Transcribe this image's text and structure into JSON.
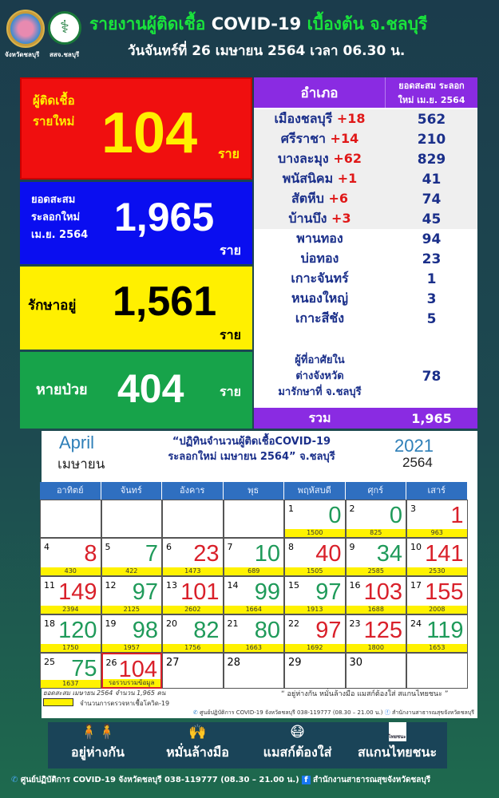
{
  "header": {
    "logo1_caption": "จังหวัดชลบุรี",
    "logo2_caption": "สสจ.ชลบุรี",
    "title_green1": "รายงานผู้ติดเชื้อ",
    "title_white": "COVID-19",
    "title_green2": "เบื้องต้น จ.ชลบุรี",
    "subtitle": "วันจันทร์ที่ 26 เมษายน 2564 เวลา 06.30 น."
  },
  "summary": {
    "new": {
      "label1": "ผู้ติดเชื้อ",
      "label2": "รายใหม่",
      "value": "104",
      "unit": "ราย",
      "bg": "#f00f0f"
    },
    "cumulative": {
      "label1": "ยอดสะสม",
      "label2": "ระลอกใหม่",
      "label3": "เม.ย. 2564",
      "value": "1,965",
      "unit": "ราย",
      "bg": "#0a0ef0"
    },
    "treating": {
      "label": "รักษาอยู่",
      "value": "1,561",
      "unit": "ราย",
      "bg": "#fff000"
    },
    "recovered": {
      "label": "หายป่วย",
      "value": "404",
      "unit": "ราย",
      "bg": "#17a34a"
    }
  },
  "district_table": {
    "col1": "อำเภอ",
    "col2a": "ยอดสะสม ระลอก",
    "col2b": "ใหม่ เม.ย. 2564",
    "rows": [
      {
        "district": "เมืองชลบุรี",
        "new": "+18",
        "total": "562"
      },
      {
        "district": "ศรีราชา",
        "new": "+14",
        "total": "210"
      },
      {
        "district": "บางละมุง",
        "new": "+62",
        "total": "829"
      },
      {
        "district": "พนัสนิคม",
        "new": "+1",
        "total": "41"
      },
      {
        "district": "สัตหีบ",
        "new": "+6",
        "total": "74"
      },
      {
        "district": "บ้านบึง",
        "new": "+3",
        "total": "45"
      },
      {
        "district": "พานทอง",
        "new": "",
        "total": "94"
      },
      {
        "district": "บ่อทอง",
        "new": "",
        "total": "23"
      },
      {
        "district": "เกาะจันทร์",
        "new": "",
        "total": "1"
      },
      {
        "district": "หนองใหญ่",
        "new": "",
        "total": "3"
      },
      {
        "district": "เกาะสีชัง",
        "new": "",
        "total": "5"
      }
    ],
    "outside": {
      "l1": "ผู้ที่อาศัยใน",
      "l2": "ต่างจังหวัด",
      "l3": "มารักษาที่ จ.ชลบุรี",
      "total": "78"
    },
    "total_label": "รวม",
    "total_value": "1,965"
  },
  "calendar": {
    "month_en": "April",
    "month_th": "เมษายน",
    "year_ad": "2021",
    "year_be": "2564",
    "title1": "“ปฏิทินจำนวนผู้ติดเชื้อCOVID-19",
    "title2": "ระลอกใหม่ เมษายน 2564” จ.ชลบุรี",
    "weekdays": [
      "อาทิตย์",
      "จันทร์",
      "อังคาร",
      "พุธ",
      "พฤหัสบดี",
      "ศุกร์",
      "เสาร์"
    ],
    "colors": {
      "up": "#d9202a",
      "down": "#1f9a5a"
    },
    "days": [
      {
        "day": "1",
        "cases": "0",
        "tests": "1500",
        "trend": "down"
      },
      {
        "day": "2",
        "cases": "0",
        "tests": "825",
        "trend": "down"
      },
      {
        "day": "3",
        "cases": "1",
        "tests": "963",
        "trend": "up"
      },
      {
        "day": "4",
        "cases": "8",
        "tests": "430",
        "trend": "up"
      },
      {
        "day": "5",
        "cases": "7",
        "tests": "422",
        "trend": "down"
      },
      {
        "day": "6",
        "cases": "23",
        "tests": "1473",
        "trend": "up"
      },
      {
        "day": "7",
        "cases": "10",
        "tests": "689",
        "trend": "down"
      },
      {
        "day": "8",
        "cases": "40",
        "tests": "1505",
        "trend": "up"
      },
      {
        "day": "9",
        "cases": "34",
        "tests": "2585",
        "trend": "down"
      },
      {
        "day": "10",
        "cases": "141",
        "tests": "2530",
        "trend": "up"
      },
      {
        "day": "11",
        "cases": "149",
        "tests": "2394",
        "trend": "up"
      },
      {
        "day": "12",
        "cases": "97",
        "tests": "2125",
        "trend": "down"
      },
      {
        "day": "13",
        "cases": "101",
        "tests": "2602",
        "trend": "up"
      },
      {
        "day": "14",
        "cases": "99",
        "tests": "1664",
        "trend": "down"
      },
      {
        "day": "15",
        "cases": "97",
        "tests": "1913",
        "trend": "down"
      },
      {
        "day": "16",
        "cases": "103",
        "tests": "1688",
        "trend": "up"
      },
      {
        "day": "17",
        "cases": "155",
        "tests": "2008",
        "trend": "up"
      },
      {
        "day": "18",
        "cases": "120",
        "tests": "1750",
        "trend": "down"
      },
      {
        "day": "19",
        "cases": "98",
        "tests": "1957",
        "trend": "down"
      },
      {
        "day": "20",
        "cases": "82",
        "tests": "1756",
        "trend": "down"
      },
      {
        "day": "21",
        "cases": "80",
        "tests": "1663",
        "trend": "down"
      },
      {
        "day": "22",
        "cases": "97",
        "tests": "1692",
        "trend": "up"
      },
      {
        "day": "23",
        "cases": "125",
        "tests": "1800",
        "trend": "up"
      },
      {
        "day": "24",
        "cases": "119",
        "tests": "1653",
        "trend": "down"
      },
      {
        "day": "25",
        "cases": "75",
        "tests": "1637",
        "trend": "down"
      },
      {
        "day": "26",
        "cases": "104",
        "tests": "รอรวบรวมข้อมูล",
        "trend": "up"
      },
      {
        "day": "27"
      },
      {
        "day": "28"
      },
      {
        "day": "29"
      },
      {
        "day": "30"
      }
    ],
    "note_cumulative": "ยอดสะสม เมษายน 2564 จำนวน 1,965 คน",
    "legend_yellow": "จำนวนการตรวจหาเชื้อโควิด-19",
    "slogan": "“ อยู่ห่างกัน หมั่นล้างมือ แมสก์ต้องใส่ สแกนไทยชนะ ”",
    "contact": "ศูนย์ปฏิบัติการ COVID-19 จังหวัดชลบุรี 038-119777 (08.30 – 21.00 น.)",
    "facebook": "สำนักงานสาธารณสุขจังหวัดชลบุรี"
  },
  "measures": [
    {
      "label": "อยู่ห่างกัน",
      "icon": "social-distance-icon"
    },
    {
      "label": "หมั่นล้างมือ",
      "icon": "hand-wash-icon"
    },
    {
      "label": "แมสก์ต้องใส่",
      "icon": "face-mask-icon"
    },
    {
      "label": "สแกนไทยชนะ",
      "icon": "thaichana-icon",
      "icon_text": "ไทยชนะ"
    }
  ],
  "footer": {
    "contact": "ศูนย์ปฏิบัติการ COVID-19 จังหวัดชลบุรี 038-119777 (08.30 – 21.00 น.)",
    "facebook": "สำนักงานสาธารณสุขจังหวัดชลบุรี"
  }
}
